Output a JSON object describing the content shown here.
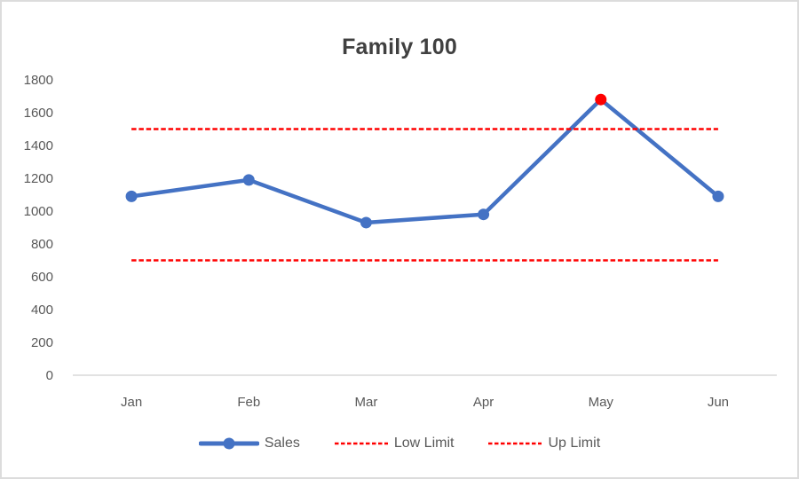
{
  "chart_data": {
    "type": "line",
    "title": "Family 100",
    "categories": [
      "Jan",
      "Feb",
      "Mar",
      "Apr",
      "May",
      "Jun"
    ],
    "series": [
      {
        "name": "Sales",
        "values": [
          1090,
          1190,
          930,
          980,
          1680,
          1090
        ],
        "color": "#4472C4",
        "line_style": "solid",
        "markers": true,
        "point_colors": [
          "#4472C4",
          "#4472C4",
          "#4472C4",
          "#4472C4",
          "#FF0000",
          "#4472C4"
        ]
      },
      {
        "name": "Low Limit",
        "values": [
          700,
          700,
          700,
          700,
          700,
          700
        ],
        "color": "#FF0000",
        "line_style": "dashed",
        "markers": false
      },
      {
        "name": "Up Limit",
        "values": [
          1500,
          1500,
          1500,
          1500,
          1500,
          1500
        ],
        "color": "#FF0000",
        "line_style": "dashed",
        "markers": false
      }
    ],
    "ylim": [
      0,
      1800
    ],
    "yticks": [
      0,
      200,
      400,
      600,
      800,
      1000,
      1200,
      1400,
      1600,
      1800
    ],
    "grid": false,
    "legend_position": "bottom",
    "axis_line_color": "#D9D9D9",
    "tick_text_color": "#595959",
    "title_color": "#404040",
    "frame_border_color": "#DCDCDC"
  }
}
